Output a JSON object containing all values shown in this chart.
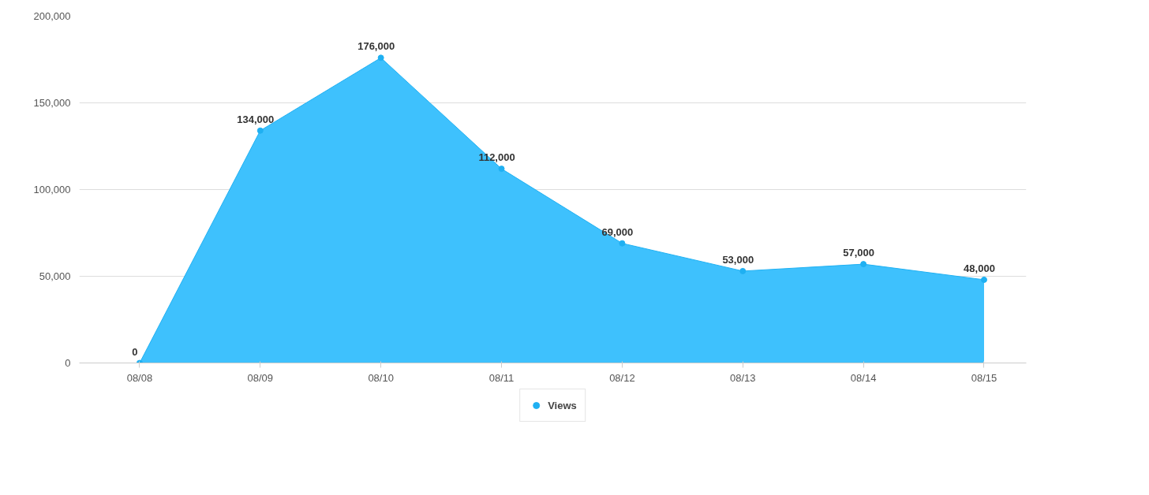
{
  "chart_data": {
    "type": "area",
    "categories": [
      "08/08",
      "08/09",
      "08/10",
      "08/11",
      "08/12",
      "08/13",
      "08/14",
      "08/15"
    ],
    "series": [
      {
        "name": "Views",
        "color": "#3ec1fd",
        "values": [
          0,
          134000,
          176000,
          112000,
          69000,
          53000,
          57000,
          48000
        ],
        "value_labels": [
          "0",
          "134,000",
          "176,000",
          "112,000",
          "69,000",
          "53,000",
          "57,000",
          "48,000"
        ]
      }
    ],
    "ylim": [
      0,
      200000
    ],
    "yticks": [
      {
        "value": 0,
        "label": "0"
      },
      {
        "value": 50000,
        "label": "50,000"
      },
      {
        "value": 100000,
        "label": "100,000"
      },
      {
        "value": 150000,
        "label": "150,000"
      },
      {
        "value": 200000,
        "label": "200,000"
      }
    ],
    "grid": "y",
    "legend": "bottom",
    "marker": "circle",
    "line_style": "solid"
  }
}
